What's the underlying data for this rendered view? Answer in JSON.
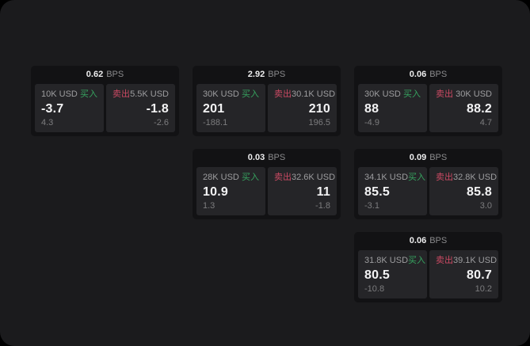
{
  "labels": {
    "buy": "买入",
    "sell": "卖出",
    "bps_unit": "BPS"
  },
  "colors": {
    "buy_green": "#36a35f",
    "sell_red": "#cb4a63",
    "background": "#1b1b1d",
    "card_background": "#121214",
    "panel_background": "#252528"
  },
  "cards": [
    {
      "bps": "0.62",
      "col": 1,
      "row": 1,
      "buy": {
        "volume": "10K USD",
        "value": "-3.7",
        "sub": "4.3"
      },
      "sell": {
        "volume": "5.5K USD",
        "value": "-1.8",
        "sub": "-2.6"
      }
    },
    {
      "bps": "2.92",
      "col": 2,
      "row": 1,
      "buy": {
        "volume": "30K USD",
        "value": "201",
        "sub": "-188.1"
      },
      "sell": {
        "volume": "30.1K USD",
        "value": "210",
        "sub": "196.5"
      }
    },
    {
      "bps": "0.06",
      "col": 3,
      "row": 1,
      "buy": {
        "volume": "30K USD",
        "value": "88",
        "sub": "-4.9"
      },
      "sell": {
        "volume": "30K USD",
        "value": "88.2",
        "sub": "4.7"
      }
    },
    {
      "bps": "0.03",
      "col": 2,
      "row": 2,
      "buy": {
        "volume": "28K USD",
        "value": "10.9",
        "sub": "1.3"
      },
      "sell": {
        "volume": "32.6K USD",
        "value": "11",
        "sub": "-1.8"
      }
    },
    {
      "bps": "0.09",
      "col": 3,
      "row": 2,
      "buy": {
        "volume": "34.1K USD",
        "value": "85.5",
        "sub": "-3.1"
      },
      "sell": {
        "volume": "32.8K USD",
        "value": "85.8",
        "sub": "3.0"
      }
    },
    {
      "bps": "0.06",
      "col": 3,
      "row": 3,
      "buy": {
        "volume": "31.8K USD",
        "value": "80.5",
        "sub": "-10.8"
      },
      "sell": {
        "volume": "39.1K USD",
        "value": "80.7",
        "sub": "10.2"
      }
    }
  ]
}
